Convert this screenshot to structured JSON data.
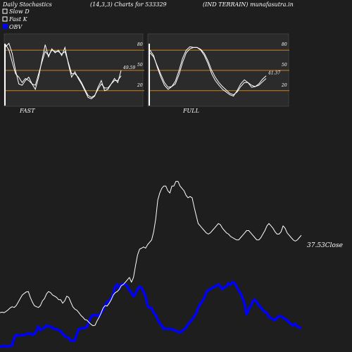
{
  "header": {
    "left": "Daily Stochastics",
    "center": "(14,3,3) Charts for 533329",
    "right": "(IND TERRAIN) munafasutra.in"
  },
  "legend": [
    {
      "label": "Slow  D",
      "color": "#ffffff",
      "filled": false
    },
    {
      "label": "Fast K",
      "color": "#ffffff",
      "filled": false
    },
    {
      "label": "OBV",
      "color": "#0000ff",
      "filled": true
    }
  ],
  "colors": {
    "background": "#1e1e1e",
    "panel": "#2b2b2b",
    "level_line": "#c8821e",
    "stoch_line": "#ffffff",
    "obv_line": "#0000ff",
    "close_line": "#ffffff"
  },
  "chart_data": [
    {
      "type": "line",
      "panel": "fast",
      "xlabel": "FAST",
      "ylim": [
        0,
        100
      ],
      "levels": [
        20,
        50,
        80
      ],
      "y_ticks": [
        "80",
        "50",
        "20"
      ],
      "last_value_label": "49.59",
      "series": [
        {
          "values": [
            85,
            90,
            75,
            50,
            30,
            28,
            35,
            40,
            30,
            22,
            40,
            65,
            88,
            70,
            82,
            76,
            80,
            72,
            84,
            60,
            40,
            48,
            38,
            30,
            20,
            10,
            8,
            12,
            25,
            35,
            20,
            22,
            30,
            38,
            32,
            50
          ]
        },
        {
          "values": [
            88,
            80,
            62,
            45,
            40,
            32,
            38,
            35,
            30,
            28,
            45,
            62,
            78,
            72,
            80,
            78,
            78,
            74,
            78,
            62,
            45,
            45,
            40,
            32,
            22,
            13,
            10,
            13,
            22,
            30,
            24,
            24,
            30,
            35,
            35,
            42
          ]
        }
      ]
    },
    {
      "type": "line",
      "panel": "full",
      "xlabel": "FULL",
      "ylim": [
        0,
        100
      ],
      "levels": [
        20,
        50,
        80
      ],
      "y_ticks": [
        "80",
        "50",
        "20"
      ],
      "last_value_label": "41.37",
      "series": [
        {
          "values": [
            80,
            72,
            55,
            40,
            28,
            22,
            26,
            34,
            50,
            68,
            80,
            85,
            84,
            84,
            80,
            72,
            60,
            45,
            35,
            28,
            22,
            18,
            14,
            12,
            20,
            30,
            36,
            32,
            25,
            26,
            30,
            37,
            42
          ]
        },
        {
          "values": [
            76,
            70,
            57,
            44,
            32,
            25,
            26,
            30,
            44,
            62,
            76,
            82,
            84,
            84,
            81,
            75,
            64,
            50,
            40,
            32,
            26,
            21,
            16,
            14,
            18,
            26,
            32,
            32,
            28,
            26,
            28,
            33,
            38
          ]
        }
      ]
    },
    {
      "type": "line",
      "panel": "price-obv",
      "last_close_label": "37.53",
      "close_suffix": "Close",
      "series": [
        {
          "name": "OBV",
          "values": [
            5,
            5,
            8,
            6,
            6,
            8,
            10,
            40,
            55,
            52,
            53,
            53,
            54,
            58,
            60,
            60,
            55,
            58,
            70,
            90,
            75,
            80,
            85,
            95,
            92,
            90,
            85,
            80,
            80,
            75,
            70,
            62,
            50,
            45,
            42,
            30,
            30,
            30,
            58,
            80,
            82,
            83,
            84,
            90,
            110,
            130,
            140,
            138,
            140,
            132,
            150,
            160,
            180,
            195,
            200,
            210,
            230,
            260,
            270,
            250,
            270,
            273,
            270,
            262,
            245,
            235,
            220,
            230,
            250,
            260,
            255,
            240,
            220,
            180,
            170,
            170,
            150,
            140,
            120,
            105,
            95,
            80,
            82,
            80,
            80,
            80,
            75,
            72,
            68,
            65,
            70,
            78,
            85,
            100,
            110,
            120,
            132,
            145,
            170,
            185,
            198,
            210,
            235,
            245,
            250,
            255,
            260,
            265,
            270,
            262,
            250,
            258,
            262,
            275,
            268,
            280,
            276,
            262,
            245,
            232,
            212,
            185,
            142,
            163,
            177,
            198,
            205,
            195,
            182,
            172,
            162,
            153,
            148,
            133,
            126,
            122,
            118,
            128,
            134,
            135,
            128,
            122,
            118,
            108,
            100,
            95,
            102,
            92,
            86,
            84
          ]
        },
        {
          "name": "Close",
          "values": [
            150,
            152,
            150,
            155,
            162,
            170,
            175,
            172,
            180,
            195,
            210,
            225,
            232,
            238,
            240,
            215,
            195,
            180,
            175,
            172,
            180,
            200,
            210,
            230,
            240,
            235,
            225,
            220,
            215,
            205,
            205,
            190,
            200,
            220,
            215,
            195,
            175,
            165,
            160,
            150,
            138,
            130,
            120,
            118,
            108,
            100,
            94,
            96,
            115,
            130,
            148,
            170,
            180,
            178,
            190,
            205,
            225,
            235,
            240,
            250,
            265,
            270,
            280,
            290,
            300,
            280,
            300,
            350,
            395,
            420,
            425,
            430,
            425,
            440,
            450,
            460,
            495,
            550,
            630,
            660,
            680,
            690,
            690,
            670,
            660,
            690,
            690,
            710,
            710,
            690,
            680,
            670,
            650,
            640,
            645,
            640,
            600,
            565,
            530,
            520,
            510,
            500,
            490,
            485,
            490,
            500,
            510,
            520,
            530,
            525,
            510,
            500,
            490,
            485,
            475,
            470,
            465,
            460,
            460,
            470,
            480,
            490,
            500,
            500,
            490,
            480,
            470,
            460,
            460,
            470,
            485,
            500,
            520,
            530,
            520,
            510,
            495,
            485,
            485,
            495,
            520,
            510,
            490,
            480,
            470,
            460,
            455,
            460,
            470,
            480
          ]
        }
      ]
    }
  ]
}
